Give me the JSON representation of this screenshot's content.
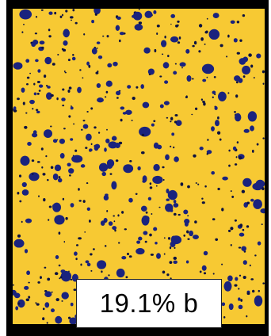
{
  "figure": {
    "caption": "19.1% b",
    "colors": {
      "background": "#F7C933",
      "particle": "#1A237E",
      "particle_dark": "#0D1240",
      "frame": "#000000",
      "label_bg": "#FFFFFF"
    }
  }
}
